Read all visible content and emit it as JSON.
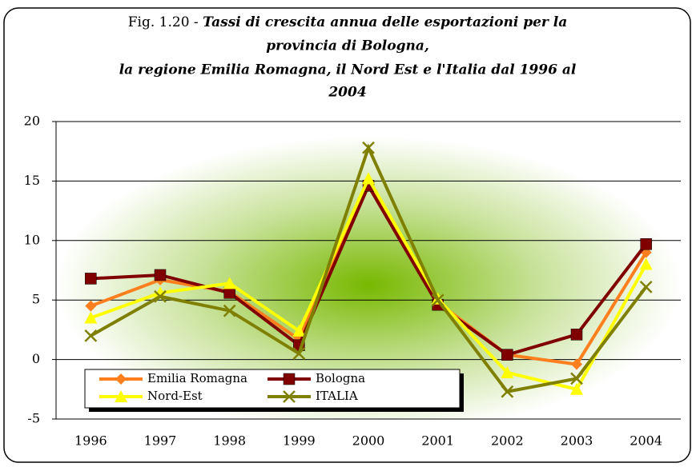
{
  "chart_data": {
    "type": "line",
    "figure_label": "Fig. 1.20 -",
    "title_lines": [
      "Tassi di crescita annua delle esportazioni per la",
      "provincia di Bologna,",
      "la regione Emilia Romagna, il Nord  Est e l'Italia dal 1996 al",
      "2004"
    ],
    "categories": [
      "1996",
      "1997",
      "1998",
      "1999",
      "2000",
      "2001",
      "2002",
      "2003",
      "2004"
    ],
    "series": [
      {
        "name": "Emilia Romagna",
        "color": "#ff7f1e",
        "marker": "diamond",
        "values": [
          4.5,
          6.7,
          5.7,
          1.7,
          14.8,
          4.8,
          0.4,
          -0.4,
          9.0
        ]
      },
      {
        "name": "Bologna",
        "color": "#800000",
        "marker": "square",
        "values": [
          6.8,
          7.1,
          5.6,
          1.2,
          14.6,
          4.6,
          0.4,
          2.1,
          9.7
        ]
      },
      {
        "name": "Nord-Est",
        "color": "#ffff00",
        "marker": "triangle",
        "values": [
          3.5,
          5.6,
          6.4,
          2.4,
          15.2,
          5.1,
          -1.1,
          -2.5,
          8.0
        ]
      },
      {
        "name": "ITALIA",
        "color": "#808000",
        "marker": "x",
        "values": [
          2.0,
          5.3,
          4.1,
          0.5,
          17.8,
          5.0,
          -2.7,
          -1.6,
          6.1
        ]
      }
    ],
    "ylim": [
      -5,
      20
    ],
    "yticks": [
      -5,
      0,
      5,
      10,
      15,
      20
    ],
    "grid": true,
    "legend": "lower left"
  }
}
